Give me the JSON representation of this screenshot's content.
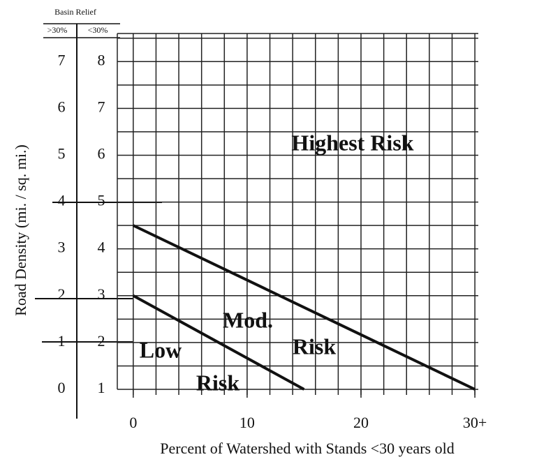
{
  "chart_data": {
    "type": "line",
    "header": "Basin Relief",
    "scale_labels": [
      ">30%",
      "<30%"
    ],
    "y_label": "Road Density (mi. / sq. mi.)",
    "x_label": "Percent of Watershed with Stands <30 years old",
    "xlim": [
      -1.4,
      30.3
    ],
    "xticks": [
      0,
      10,
      20,
      {
        "value": 30,
        "label": "30+"
      }
    ],
    "xminorticks": [
      0,
      2,
      4,
      6,
      8,
      10,
      12,
      14,
      16,
      18,
      20,
      22,
      24,
      26,
      28,
      30
    ],
    "ylim": [
      1,
      8.6
    ],
    "yticks": [
      1,
      2,
      3,
      4,
      5,
      6,
      7,
      8
    ],
    "yminorticks": [
      1,
      1.5,
      2,
      2.5,
      3,
      3.5,
      4,
      4.5,
      5,
      5.5,
      6,
      6.5,
      7,
      7.5,
      8,
      8.5
    ],
    "y2lim": [
      0,
      7.6
    ],
    "y2ticks": [
      0,
      1,
      2,
      3,
      4,
      5,
      6,
      7
    ],
    "grid": true,
    "series": [
      {
        "color": "#111111",
        "x": [
          0,
          30
        ],
        "values": [
          4.5,
          1
        ]
      },
      {
        "color": "#111111",
        "x": [
          0,
          15
        ],
        "values": [
          3,
          1
        ]
      }
    ],
    "annotations": [
      "Highest Risk",
      "Mod.",
      "Risk",
      "Low",
      "Risk"
    ]
  }
}
